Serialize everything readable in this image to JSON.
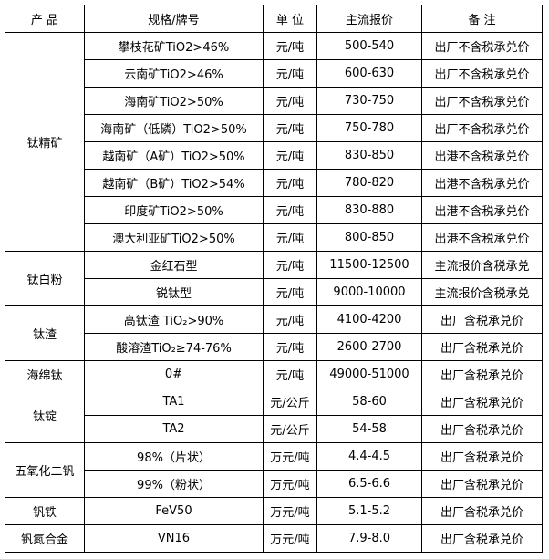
{
  "header": [
    "产 品",
    "规格/牌号",
    "单 位",
    "主流报价",
    "备 注"
  ],
  "groups": [
    {
      "product": "钛精矿",
      "rows": [
        [
          "攀枝花矿TiO2>46%",
          "元/吨",
          "500-540",
          "出厂不含税承兑价"
        ],
        [
          "云南矿TiO2>46%",
          "元/吨",
          "600-630",
          "出厂不含税承兑价"
        ],
        [
          "海南矿TiO2>50%",
          "元/吨",
          "730-750",
          "出厂不含税承兑价"
        ],
        [
          "海南矿（低磷）TiO2>50%",
          "元/吨",
          "750-780",
          "出厂不含税承兑价"
        ],
        [
          "越南矿（A矿）TiO2>50%",
          "元/吨",
          "830-850",
          "出港不含税承兑价"
        ],
        [
          "越南矿（B矿）TiO2>54%",
          "元/吨",
          "780-820",
          "出港不含税承兑价"
        ],
        [
          "印度矿TiO2>50%",
          "元/吨",
          "830-880",
          "出港不含税承兑价"
        ],
        [
          "澳大利亚矿TiO2>50%",
          "元/吨",
          "800-850",
          "出港不含税承兑价"
        ]
      ]
    },
    {
      "product": "钛白粉",
      "rows": [
        [
          "金红石型",
          "元/吨",
          "11500-12500",
          "主流报价含税承兑"
        ],
        [
          "锐钛型",
          "元/吨",
          "9000-10000",
          "主流报价含税承兑"
        ]
      ]
    },
    {
      "product": "钛渣",
      "rows": [
        [
          "高钛渣 TiO₂>90%",
          "元/吨",
          "4100-4200",
          "出厂含税承兑价"
        ],
        [
          "酸溶渣TiO₂≥74-76%",
          "元/吨",
          "2600-2700",
          "出厂含税承兑价"
        ]
      ]
    },
    {
      "product": "海绵钛",
      "rows": [
        [
          "0#",
          "元/吨",
          "49000-51000",
          "出厂含税承兑价"
        ]
      ]
    },
    {
      "product": "钛锭",
      "rows": [
        [
          "TA1",
          "元/公斤",
          "58-60",
          "出厂含税承兑价"
        ],
        [
          "TA2",
          "元/公斤",
          "54-58",
          "出厂含税承兑价"
        ]
      ]
    },
    {
      "product": "五氧化二钒",
      "rows": [
        [
          "98%（片状）",
          "万元/吨",
          "4.4-4.5",
          "出厂含税承兑价"
        ],
        [
          "99%（粉状）",
          "万元/吨",
          "6.5-6.6",
          "出厂含税承兑价"
        ]
      ]
    },
    {
      "product": "钒铁",
      "rows": [
        [
          "FeV50",
          "万元/吨",
          "5.1-5.2",
          "出厂含税承兑价"
        ]
      ]
    },
    {
      "product": "钒氮合金",
      "rows": [
        [
          "VN16",
          "万元/吨",
          "7.9-8.0",
          "出厂含税承兑价"
        ]
      ]
    }
  ]
}
